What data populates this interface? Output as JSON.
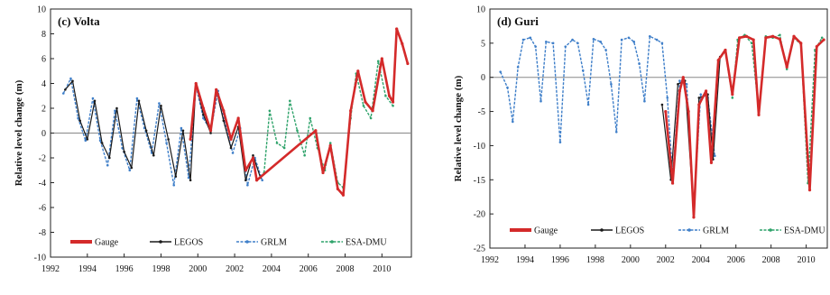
{
  "colors": {
    "Gauge": "#d42a2a",
    "LEGOS": "#1a1a1a",
    "GRLM": "#3f7fc9",
    "ESA-DMU": "#2fa36b",
    "zero_line": "#888888"
  },
  "chart_data": [
    {
      "type": "line",
      "title": "(c) Volta",
      "xlabel": "",
      "ylabel": "Relative level change (m)",
      "xlim": [
        1992,
        2011.6
      ],
      "ylim": [
        -10,
        10
      ],
      "xticks": [
        1992,
        1994,
        1996,
        1998,
        2000,
        2002,
        2004,
        2006,
        2008,
        2010
      ],
      "yticks": [
        -10,
        -8,
        -6,
        -4,
        -2,
        0,
        2,
        4,
        6,
        8,
        10
      ],
      "grid": false,
      "legend": {
        "placement": "bottom",
        "entries": [
          "Gauge",
          "LEGOS",
          "GRLM",
          "ESA-DMU"
        ]
      },
      "series": [
        {
          "name": "Gauge",
          "points": [
            [
              1999.6,
              -0.5
            ],
            [
              1999.9,
              4.0
            ],
            [
              2000.3,
              2.0
            ],
            [
              2000.7,
              0.2
            ],
            [
              2001.0,
              3.5
            ],
            [
              2001.4,
              1.8
            ],
            [
              2001.8,
              -0.5
            ],
            [
              2002.2,
              1.2
            ],
            [
              2002.6,
              -3.0
            ],
            [
              2003.0,
              -2.0
            ],
            [
              2003.2,
              -3.8
            ],
            [
              2006.4,
              0.2
            ],
            [
              2006.8,
              -3.2
            ],
            [
              2007.2,
              -1.0
            ],
            [
              2007.6,
              -4.5
            ],
            [
              2007.9,
              -5.0
            ],
            [
              2008.3,
              1.8
            ],
            [
              2008.7,
              5.0
            ],
            [
              2009.1,
              2.5
            ],
            [
              2009.5,
              1.8
            ],
            [
              2010.0,
              6.0
            ],
            [
              2010.4,
              3.0
            ],
            [
              2010.6,
              2.5
            ],
            [
              2010.8,
              8.4
            ],
            [
              2011.1,
              7.2
            ],
            [
              2011.4,
              5.6
            ]
          ]
        },
        {
          "name": "LEGOS",
          "points": [
            [
              1992.8,
              3.5
            ],
            [
              1993.2,
              4.2
            ],
            [
              1993.6,
              1.0
            ],
            [
              1994.0,
              -0.5
            ],
            [
              1994.4,
              2.6
            ],
            [
              1994.8,
              -0.8
            ],
            [
              1995.2,
              -2.0
            ],
            [
              1995.6,
              2.0
            ],
            [
              1996.0,
              -1.5
            ],
            [
              1996.4,
              -2.8
            ],
            [
              1996.8,
              2.6
            ],
            [
              1997.2,
              0.2
            ],
            [
              1997.6,
              -1.8
            ],
            [
              1998.0,
              2.2
            ],
            [
              1998.4,
              -0.5
            ],
            [
              1998.8,
              -3.5
            ],
            [
              1999.2,
              0.2
            ],
            [
              1999.6,
              -3.8
            ],
            [
              1999.9,
              4.0
            ],
            [
              2000.3,
              1.5
            ],
            [
              2000.7,
              0.0
            ],
            [
              2001.0,
              3.5
            ],
            [
              2001.4,
              1.0
            ],
            [
              2001.8,
              -1.2
            ],
            [
              2002.2,
              0.5
            ],
            [
              2002.6,
              -3.8
            ],
            [
              2003.0,
              -1.8
            ],
            [
              2003.4,
              -3.6
            ]
          ]
        },
        {
          "name": "GRLM",
          "points": [
            [
              1992.7,
              3.2
            ],
            [
              1993.1,
              4.4
            ],
            [
              1993.5,
              1.2
            ],
            [
              1993.9,
              -0.6
            ],
            [
              1994.3,
              2.8
            ],
            [
              1994.7,
              -0.6
            ],
            [
              1995.1,
              -2.6
            ],
            [
              1995.5,
              1.8
            ],
            [
              1995.9,
              -1.2
            ],
            [
              1996.3,
              -3.0
            ],
            [
              1996.7,
              2.8
            ],
            [
              1997.1,
              0.4
            ],
            [
              1997.5,
              -1.6
            ],
            [
              1997.9,
              2.4
            ],
            [
              1998.3,
              -0.8
            ],
            [
              1998.7,
              -4.2
            ],
            [
              1999.1,
              0.4
            ],
            [
              1999.5,
              -3.6
            ],
            [
              1999.9,
              3.8
            ],
            [
              2000.3,
              1.2
            ],
            [
              2000.7,
              0.2
            ],
            [
              2001.1,
              3.4
            ],
            [
              2001.5,
              0.6
            ],
            [
              2001.9,
              -1.6
            ],
            [
              2002.3,
              0.4
            ],
            [
              2002.7,
              -4.2
            ],
            [
              2003.1,
              -2.0
            ],
            [
              2003.5,
              -3.8
            ]
          ]
        },
        {
          "name": "ESA-DMU",
          "points": [
            [
              2003.6,
              -3.2
            ],
            [
              2003.9,
              1.8
            ],
            [
              2004.3,
              -0.8
            ],
            [
              2004.7,
              -1.2
            ],
            [
              2005.0,
              2.6
            ],
            [
              2005.4,
              0.2
            ],
            [
              2005.8,
              -1.8
            ],
            [
              2006.1,
              1.2
            ],
            [
              2006.5,
              -1.2
            ],
            [
              2006.9,
              -3.0
            ],
            [
              2007.2,
              -0.8
            ],
            [
              2007.6,
              -4.0
            ],
            [
              2007.9,
              -4.4
            ],
            [
              2008.3,
              1.2
            ],
            [
              2008.6,
              4.8
            ],
            [
              2009.0,
              2.2
            ],
            [
              2009.4,
              1.2
            ],
            [
              2009.8,
              5.8
            ],
            [
              2010.2,
              3.0
            ],
            [
              2010.6,
              2.2
            ]
          ]
        }
      ]
    },
    {
      "type": "line",
      "title": "(d) Guri",
      "xlabel": "",
      "ylabel": "Relative level change (m)",
      "xlim": [
        1992,
        2011.2
      ],
      "ylim": [
        -25,
        10
      ],
      "xticks": [
        1992,
        1994,
        1996,
        1998,
        2000,
        2002,
        2004,
        2006,
        2008,
        2010
      ],
      "yticks": [
        -25,
        -20,
        -15,
        -10,
        -5,
        0,
        5,
        10
      ],
      "grid": false,
      "legend": {
        "placement": "bottom",
        "entries": [
          "Gauge",
          "LEGOS",
          "GRLM",
          "ESA-DMU"
        ]
      },
      "series": [
        {
          "name": "Gauge",
          "points": [
            [
              2002.0,
              -5.0
            ],
            [
              2002.4,
              -15.5
            ],
            [
              2002.8,
              -2.0
            ],
            [
              2003.0,
              0.0
            ],
            [
              2003.3,
              -5.0
            ],
            [
              2003.6,
              -20.5
            ],
            [
              2003.9,
              -4.0
            ],
            [
              2004.3,
              -2.0
            ],
            [
              2004.6,
              -12.5
            ],
            [
              2005.0,
              2.5
            ],
            [
              2005.4,
              4.0
            ],
            [
              2005.8,
              -2.5
            ],
            [
              2006.2,
              5.8
            ],
            [
              2006.6,
              6.0
            ],
            [
              2007.0,
              5.5
            ],
            [
              2007.3,
              -5.5
            ],
            [
              2007.7,
              5.8
            ],
            [
              2008.1,
              6.0
            ],
            [
              2008.5,
              5.6
            ],
            [
              2008.9,
              1.5
            ],
            [
              2009.3,
              6.0
            ],
            [
              2009.7,
              5.0
            ],
            [
              2010.2,
              -16.5
            ],
            [
              2010.6,
              4.5
            ],
            [
              2011.0,
              5.5
            ]
          ]
        },
        {
          "name": "LEGOS",
          "points": [
            [
              2001.8,
              -4.0
            ],
            [
              2002.3,
              -15.0
            ],
            [
              2002.7,
              -1.0
            ],
            [
              2003.1,
              -0.5
            ],
            [
              2003.6,
              -20.0
            ],
            [
              2003.9,
              -3.0
            ],
            [
              2004.4,
              -2.5
            ],
            [
              2004.7,
              -12.0
            ],
            [
              2005.1,
              3.0
            ]
          ]
        },
        {
          "name": "GRLM",
          "points": [
            [
              1992.6,
              0.8
            ],
            [
              1993.0,
              -1.5
            ],
            [
              1993.3,
              -6.5
            ],
            [
              1993.6,
              1.5
            ],
            [
              1993.9,
              5.5
            ],
            [
              1994.3,
              5.8
            ],
            [
              1994.6,
              4.5
            ],
            [
              1994.9,
              -3.5
            ],
            [
              1995.2,
              5.2
            ],
            [
              1995.6,
              5.0
            ],
            [
              1996.0,
              -9.5
            ],
            [
              1996.3,
              4.5
            ],
            [
              1996.7,
              5.5
            ],
            [
              1997.0,
              5.0
            ],
            [
              1997.3,
              1.0
            ],
            [
              1997.6,
              -4.0
            ],
            [
              1997.9,
              5.6
            ],
            [
              1998.3,
              5.2
            ],
            [
              1998.6,
              4.0
            ],
            [
              1998.9,
              -1.0
            ],
            [
              1999.2,
              -8.0
            ],
            [
              1999.5,
              5.5
            ],
            [
              1999.9,
              5.8
            ],
            [
              2000.2,
              5.2
            ],
            [
              2000.5,
              2.0
            ],
            [
              2000.8,
              -3.5
            ],
            [
              2001.1,
              6.0
            ],
            [
              2001.5,
              5.5
            ],
            [
              2001.8,
              5.0
            ],
            [
              2002.1,
              -3.0
            ],
            [
              2002.4,
              -14.5
            ],
            [
              2002.8,
              -0.5
            ],
            [
              2003.2,
              -1.0
            ],
            [
              2003.6,
              -19.5
            ],
            [
              2004.0,
              -2.5
            ],
            [
              2004.4,
              -3.0
            ],
            [
              2004.8,
              -11.5
            ]
          ]
        },
        {
          "name": "ESA-DMU",
          "points": [
            [
              2005.0,
              2.5
            ],
            [
              2005.4,
              3.8
            ],
            [
              2005.8,
              -3.0
            ],
            [
              2006.1,
              5.5
            ],
            [
              2006.5,
              6.2
            ],
            [
              2006.9,
              5.0
            ],
            [
              2007.3,
              -5.0
            ],
            [
              2007.7,
              6.0
            ],
            [
              2008.1,
              5.8
            ],
            [
              2008.5,
              6.2
            ],
            [
              2008.9,
              1.2
            ],
            [
              2009.3,
              5.8
            ],
            [
              2009.7,
              4.8
            ],
            [
              2010.1,
              -15.5
            ],
            [
              2010.5,
              4.0
            ],
            [
              2010.9,
              5.8
            ]
          ]
        }
      ]
    }
  ]
}
